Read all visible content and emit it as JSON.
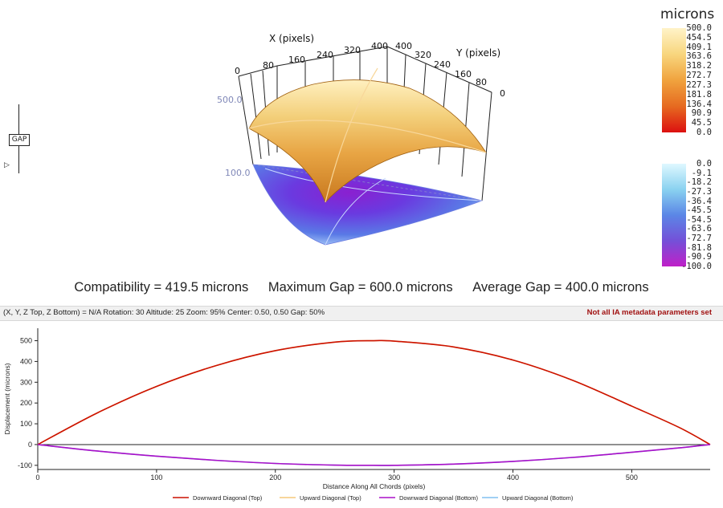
{
  "surface": {
    "x_axis_title": "X (pixels)",
    "y_axis_title": "Y (pixels)",
    "x_ticks": [
      "0",
      "80",
      "160",
      "240",
      "320",
      "400"
    ],
    "y_ticks": [
      "400",
      "320",
      "240",
      "160",
      "80",
      "0"
    ],
    "z_labels": [
      "500.0",
      "100.0"
    ]
  },
  "gap_widget": {
    "label": "GAP"
  },
  "legend": {
    "title": "microns",
    "positive_ticks": [
      "500.0",
      "454.5",
      "409.1",
      "363.6",
      "318.2",
      "272.7",
      "227.3",
      "181.8",
      "136.4",
      "90.9",
      "45.5",
      "0.0"
    ],
    "negative_ticks": [
      "0.0",
      "-9.1",
      "-18.2",
      "-27.3",
      "-36.4",
      "-45.5",
      "-54.5",
      "-63.6",
      "-72.7",
      "-81.8",
      "-90.9",
      "-100.0"
    ],
    "colors": {
      "top_high": "#fff3c8",
      "top_low": "#dc1010",
      "bottom_high": "#dff8ff",
      "bottom_low": "#c020c8"
    }
  },
  "stats": {
    "compatibility": "Compatibility = 419.5 microns",
    "maximum_gap": "Maximum Gap = 600.0 microns",
    "average_gap": "Average Gap = 400.0 microns"
  },
  "status_bar": {
    "left_text": "(X, Y, Z Top, Z Bottom) = N/A  Rotation: 30 Altitude: 25  Zoom: 95%  Center: 0.50, 0.50  Gap: 50%",
    "right_text": "Not all IA metadata parameters set"
  },
  "chart_data": {
    "type": "line",
    "xlabel": "Distance Along All Chords (pixels)",
    "ylabel": "Displacement (microns)",
    "xlim": [
      0,
      566
    ],
    "ylim": [
      -120,
      560
    ],
    "x_ticks": [
      0,
      100,
      200,
      300,
      400,
      500
    ],
    "y_ticks": [
      -100,
      0,
      100,
      200,
      300,
      400,
      500
    ],
    "grid": false,
    "legend_position": "bottom",
    "series": [
      {
        "name": "Downward Diagonal (Top)",
        "color": "#cc1100",
        "x": [
          0,
          50,
          100,
          150,
          200,
          250,
          283,
          300,
          350,
          400,
          450,
          500,
          540,
          566
        ],
        "y": [
          0,
          152,
          280,
          380,
          452,
          493,
          500,
          498,
          470,
          407,
          310,
          185,
          82,
          0
        ]
      },
      {
        "name": "Upward Diagonal (Top)",
        "color": "#f5c87a",
        "x": [
          0,
          50,
          100,
          150,
          200,
          250,
          283,
          300,
          350,
          400,
          450,
          500,
          540,
          566
        ],
        "y": [
          0,
          152,
          280,
          380,
          452,
          493,
          500,
          498,
          470,
          407,
          310,
          185,
          82,
          0
        ]
      },
      {
        "name": "Downward Diagonal (Bottom)",
        "color": "#aa10c8",
        "x": [
          0,
          50,
          100,
          150,
          200,
          250,
          283,
          300,
          350,
          400,
          450,
          500,
          540,
          566
        ],
        "y": [
          0,
          -31,
          -56,
          -76,
          -91,
          -99,
          -100,
          -100,
          -94,
          -81,
          -62,
          -37,
          -16,
          0
        ]
      },
      {
        "name": "Upward Diagonal (Bottom)",
        "color": "#80c0f0",
        "x": [
          0,
          50,
          100,
          150,
          200,
          250,
          283,
          300,
          350,
          400,
          450,
          500,
          540,
          566
        ],
        "y": [
          0,
          -31,
          -56,
          -76,
          -91,
          -99,
          -100,
          -100,
          -94,
          -81,
          -62,
          -37,
          -16,
          0
        ]
      }
    ]
  }
}
